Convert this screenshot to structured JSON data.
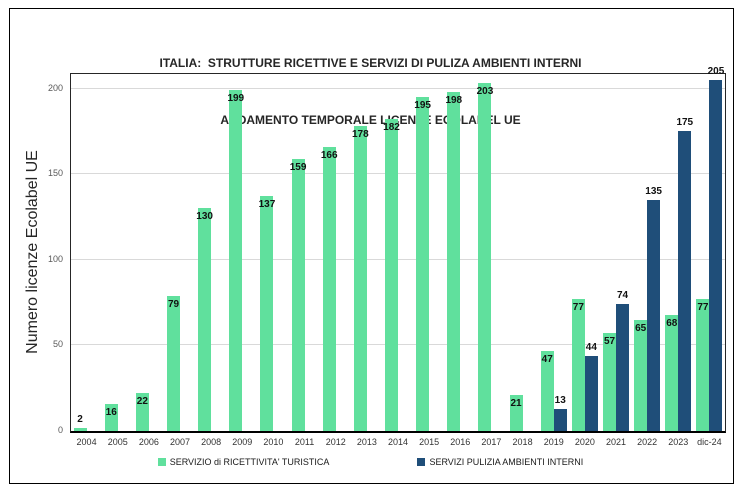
{
  "title": {
    "line1": "ITALIA:  STRUTTURE RICETTIVE E SERVIZI DI PULIZA AMBIENTI INTERNI",
    "line2": "ANDAMENTO TEMPORALE LICENZE ECOLABEL UE"
  },
  "chart_data": {
    "type": "bar",
    "title": "ITALIA: STRUTTURE RICETTIVE E SERVIZI DI PULIZA AMBIENTI INTERNI - ANDAMENTO TEMPORALE LICENZE ECOLABEL UE",
    "xlabel": "",
    "ylabel": "Numero licenze Ecolabel UE",
    "categories": [
      "2004",
      "2005",
      "2006",
      "2007",
      "2008",
      "2009",
      "2010",
      "2011",
      "2012",
      "2013",
      "2014",
      "2015",
      "2016",
      "2017",
      "2018",
      "2019",
      "2020",
      "2021",
      "2022",
      "2023",
      "dic-24"
    ],
    "series": [
      {
        "name": "SERVIZIO di RICETTIVITA' TURISTICA",
        "color": "#60E09D",
        "label_position": "inside-end",
        "values": [
          2,
          16,
          22,
          79,
          130,
          199,
          137,
          159,
          166,
          178,
          182,
          195,
          198,
          203,
          21,
          47,
          77,
          57,
          65,
          68,
          77
        ]
      },
      {
        "name": "SERVIZI PULIZIA AMBIENTI INTERNI",
        "color": "#1F4E79",
        "label_position": "outside-end",
        "values": [
          null,
          null,
          null,
          null,
          null,
          null,
          null,
          null,
          null,
          null,
          null,
          null,
          null,
          null,
          null,
          13,
          44,
          74,
          135,
          175,
          205
        ]
      }
    ],
    "yticks": [
      0,
      50,
      100,
      150,
      200
    ],
    "ylim": [
      0,
      208.5
    ],
    "grid": true,
    "legend_position": "bottom"
  },
  "colors": {
    "grid": "#d9d9d9",
    "axis": "#000000",
    "tick_text": "#595959",
    "title_text": "#262626"
  }
}
